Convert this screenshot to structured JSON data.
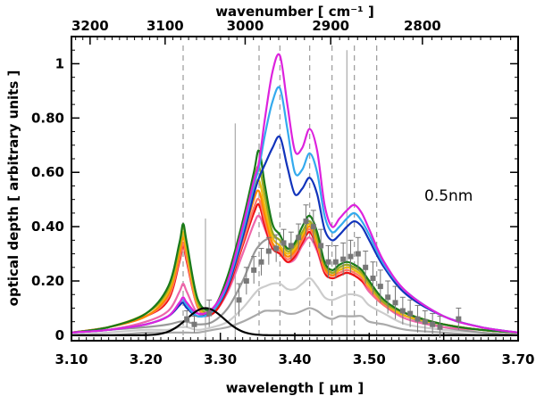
{
  "chart_data": {
    "type": "line",
    "title": "",
    "annotation": "0.5nm",
    "xlabel": "wavelength [ µm ]",
    "ylabel": "optical depth [ arbitrary units ]",
    "top_xlabel": "wavenumber [ cm⁻¹ ]",
    "xlim": [
      3.1,
      3.7
    ],
    "ylim": [
      -0.02,
      1.1
    ],
    "x_ticks": [
      3.1,
      3.2,
      3.3,
      3.4,
      3.5,
      3.6,
      3.7
    ],
    "x_tick_labels": [
      "3.10",
      "3.20",
      "3.30",
      "3.40",
      "3.50",
      "3.60",
      "3.70"
    ],
    "y_ticks": [
      0,
      0.2,
      0.4,
      0.6,
      0.8,
      1.0
    ],
    "y_tick_labels": [
      "0",
      "0.20",
      "0.40",
      "0.60",
      "0.80",
      "1"
    ],
    "top_ticks": [
      3200,
      3100,
      3000,
      2900,
      2800
    ],
    "top_tick_labels": [
      "3200",
      "3100",
      "3000",
      "2900",
      "2800"
    ],
    "dashed_lines_x": [
      3.25,
      3.352,
      3.38,
      3.42,
      3.45,
      3.48,
      3.51
    ],
    "solid_vlines": [
      {
        "x": 3.28,
        "top": 0.43
      },
      {
        "x": 3.32,
        "top": 0.78
      },
      {
        "x": 3.47,
        "top": 1.05
      }
    ],
    "profile_x": [
      3.1,
      3.15,
      3.2,
      3.23,
      3.245,
      3.25,
      3.255,
      3.27,
      3.29,
      3.31,
      3.33,
      3.345,
      3.352,
      3.36,
      3.37,
      3.38,
      3.39,
      3.4,
      3.41,
      3.42,
      3.43,
      3.44,
      3.45,
      3.46,
      3.47,
      3.48,
      3.49,
      3.5,
      3.52,
      3.55,
      3.6,
      3.65,
      3.7
    ],
    "series": [
      {
        "name": "magenta",
        "color": "#dd22dd",
        "values": [
          0.01,
          0.02,
          0.04,
          0.07,
          0.12,
          0.14,
          0.12,
          0.08,
          0.1,
          0.2,
          0.4,
          0.57,
          0.64,
          0.8,
          0.97,
          1.03,
          0.85,
          0.68,
          0.69,
          0.76,
          0.68,
          0.48,
          0.4,
          0.43,
          0.46,
          0.48,
          0.45,
          0.39,
          0.27,
          0.16,
          0.07,
          0.03,
          0.01
        ]
      },
      {
        "name": "sky-blue",
        "color": "#33aaee",
        "values": [
          0.01,
          0.02,
          0.04,
          0.07,
          0.12,
          0.13,
          0.11,
          0.07,
          0.09,
          0.19,
          0.38,
          0.55,
          0.62,
          0.74,
          0.86,
          0.91,
          0.76,
          0.6,
          0.61,
          0.67,
          0.6,
          0.44,
          0.38,
          0.4,
          0.43,
          0.45,
          0.42,
          0.37,
          0.26,
          0.16,
          0.07,
          0.03,
          0.01
        ]
      },
      {
        "name": "navy",
        "color": "#1133bb",
        "values": [
          0.01,
          0.02,
          0.04,
          0.07,
          0.11,
          0.12,
          0.1,
          0.07,
          0.09,
          0.18,
          0.36,
          0.52,
          0.58,
          0.63,
          0.69,
          0.73,
          0.62,
          0.52,
          0.54,
          0.58,
          0.52,
          0.39,
          0.35,
          0.37,
          0.4,
          0.42,
          0.4,
          0.35,
          0.25,
          0.15,
          0.07,
          0.03,
          0.01
        ]
      },
      {
        "name": "dark-green",
        "color": "#1a7a1a",
        "values": [
          0.01,
          0.03,
          0.08,
          0.18,
          0.34,
          0.41,
          0.34,
          0.13,
          0.1,
          0.22,
          0.42,
          0.6,
          0.68,
          0.55,
          0.41,
          0.37,
          0.32,
          0.34,
          0.4,
          0.44,
          0.38,
          0.27,
          0.24,
          0.26,
          0.27,
          0.26,
          0.24,
          0.2,
          0.13,
          0.08,
          0.04,
          0.02,
          0.01
        ]
      },
      {
        "name": "olive",
        "color": "#99aa22",
        "values": [
          0.01,
          0.03,
          0.08,
          0.17,
          0.33,
          0.4,
          0.33,
          0.12,
          0.09,
          0.21,
          0.4,
          0.57,
          0.62,
          0.51,
          0.38,
          0.35,
          0.31,
          0.33,
          0.38,
          0.42,
          0.36,
          0.26,
          0.23,
          0.25,
          0.26,
          0.25,
          0.23,
          0.19,
          0.12,
          0.08,
          0.04,
          0.02,
          0.01
        ]
      },
      {
        "name": "gold",
        "color": "#eebb11",
        "values": [
          0.01,
          0.03,
          0.08,
          0.16,
          0.32,
          0.38,
          0.31,
          0.11,
          0.09,
          0.2,
          0.38,
          0.53,
          0.57,
          0.47,
          0.36,
          0.33,
          0.3,
          0.32,
          0.37,
          0.41,
          0.35,
          0.26,
          0.23,
          0.24,
          0.25,
          0.24,
          0.22,
          0.18,
          0.12,
          0.07,
          0.04,
          0.02,
          0.01
        ]
      },
      {
        "name": "orange",
        "color": "#ff8800",
        "values": [
          0.01,
          0.03,
          0.07,
          0.15,
          0.3,
          0.36,
          0.3,
          0.11,
          0.09,
          0.19,
          0.36,
          0.5,
          0.53,
          0.44,
          0.34,
          0.32,
          0.29,
          0.31,
          0.36,
          0.4,
          0.34,
          0.25,
          0.22,
          0.24,
          0.25,
          0.24,
          0.22,
          0.18,
          0.12,
          0.07,
          0.04,
          0.02,
          0.01
        ]
      },
      {
        "name": "salmon",
        "color": "#ff7766",
        "values": [
          0.01,
          0.03,
          0.07,
          0.14,
          0.28,
          0.34,
          0.28,
          0.1,
          0.09,
          0.18,
          0.34,
          0.47,
          0.5,
          0.42,
          0.33,
          0.31,
          0.28,
          0.3,
          0.35,
          0.39,
          0.33,
          0.24,
          0.22,
          0.23,
          0.24,
          0.23,
          0.21,
          0.17,
          0.11,
          0.07,
          0.04,
          0.02,
          0.01
        ]
      },
      {
        "name": "red",
        "color": "#ee1111",
        "values": [
          0.01,
          0.03,
          0.07,
          0.13,
          0.27,
          0.33,
          0.27,
          0.1,
          0.08,
          0.17,
          0.33,
          0.45,
          0.48,
          0.4,
          0.32,
          0.3,
          0.27,
          0.29,
          0.34,
          0.38,
          0.32,
          0.23,
          0.21,
          0.22,
          0.23,
          0.22,
          0.2,
          0.17,
          0.11,
          0.07,
          0.04,
          0.02,
          0.01
        ]
      },
      {
        "name": "pink",
        "color": "#ee66aa",
        "values": [
          0.01,
          0.02,
          0.05,
          0.09,
          0.16,
          0.19,
          0.16,
          0.08,
          0.08,
          0.16,
          0.3,
          0.41,
          0.44,
          0.39,
          0.32,
          0.3,
          0.27,
          0.28,
          0.33,
          0.36,
          0.31,
          0.23,
          0.21,
          0.22,
          0.23,
          0.22,
          0.2,
          0.16,
          0.11,
          0.06,
          0.03,
          0.02,
          0.01
        ]
      },
      {
        "name": "gray-1",
        "color": "#999999",
        "values": [
          0.01,
          0.02,
          0.03,
          0.04,
          0.05,
          0.05,
          0.05,
          0.04,
          0.05,
          0.1,
          0.2,
          0.3,
          0.33,
          0.35,
          0.36,
          0.35,
          0.31,
          0.31,
          0.35,
          0.38,
          0.33,
          0.25,
          0.23,
          0.24,
          0.25,
          0.25,
          0.23,
          0.19,
          0.13,
          0.07,
          0.03,
          0.01,
          0.0
        ]
      },
      {
        "name": "gray-2",
        "color": "#cccccc",
        "values": [
          0.0,
          0.01,
          0.02,
          0.02,
          0.03,
          0.03,
          0.03,
          0.02,
          0.03,
          0.05,
          0.1,
          0.15,
          0.17,
          0.18,
          0.19,
          0.19,
          0.17,
          0.17,
          0.19,
          0.21,
          0.18,
          0.14,
          0.13,
          0.14,
          0.15,
          0.15,
          0.14,
          0.11,
          0.08,
          0.04,
          0.02,
          0.01,
          0.0
        ]
      },
      {
        "name": "gray-3",
        "color": "#aaaaaa",
        "values": [
          0.0,
          0.0,
          0.01,
          0.01,
          0.01,
          0.01,
          0.01,
          0.01,
          0.02,
          0.03,
          0.05,
          0.07,
          0.08,
          0.09,
          0.09,
          0.09,
          0.08,
          0.08,
          0.09,
          0.1,
          0.09,
          0.07,
          0.06,
          0.07,
          0.07,
          0.07,
          0.07,
          0.05,
          0.04,
          0.02,
          0.01,
          0.0,
          0.0
        ]
      }
    ],
    "gaussian": {
      "name": "black-gaussian",
      "color": "#000000",
      "center": 3.28,
      "amplitude": 0.1,
      "sigma": 0.025
    },
    "observed_points": [
      {
        "x": 3.255,
        "y": 0.06,
        "err": 0.03
      },
      {
        "x": 3.265,
        "y": 0.04,
        "err": 0.03
      },
      {
        "x": 3.285,
        "y": 0.08,
        "err": 0.05
      },
      {
        "x": 3.325,
        "y": 0.13,
        "err": 0.06
      },
      {
        "x": 3.335,
        "y": 0.2,
        "err": 0.05
      },
      {
        "x": 3.345,
        "y": 0.24,
        "err": 0.05
      },
      {
        "x": 3.355,
        "y": 0.27,
        "err": 0.05
      },
      {
        "x": 3.365,
        "y": 0.31,
        "err": 0.05
      },
      {
        "x": 3.375,
        "y": 0.32,
        "err": 0.05
      },
      {
        "x": 3.385,
        "y": 0.34,
        "err": 0.05
      },
      {
        "x": 3.395,
        "y": 0.33,
        "err": 0.05
      },
      {
        "x": 3.405,
        "y": 0.36,
        "err": 0.05
      },
      {
        "x": 3.415,
        "y": 0.42,
        "err": 0.06
      },
      {
        "x": 3.425,
        "y": 0.4,
        "err": 0.06
      },
      {
        "x": 3.435,
        "y": 0.33,
        "err": 0.06
      },
      {
        "x": 3.445,
        "y": 0.27,
        "err": 0.06
      },
      {
        "x": 3.455,
        "y": 0.27,
        "err": 0.06
      },
      {
        "x": 3.465,
        "y": 0.28,
        "err": 0.06
      },
      {
        "x": 3.475,
        "y": 0.29,
        "err": 0.06
      },
      {
        "x": 3.485,
        "y": 0.3,
        "err": 0.06
      },
      {
        "x": 3.495,
        "y": 0.25,
        "err": 0.06
      },
      {
        "x": 3.505,
        "y": 0.21,
        "err": 0.06
      },
      {
        "x": 3.515,
        "y": 0.18,
        "err": 0.06
      },
      {
        "x": 3.525,
        "y": 0.14,
        "err": 0.06
      },
      {
        "x": 3.535,
        "y": 0.12,
        "err": 0.06
      },
      {
        "x": 3.545,
        "y": 0.09,
        "err": 0.05
      },
      {
        "x": 3.555,
        "y": 0.08,
        "err": 0.05
      },
      {
        "x": 3.565,
        "y": 0.06,
        "err": 0.05
      },
      {
        "x": 3.575,
        "y": 0.05,
        "err": 0.04
      },
      {
        "x": 3.585,
        "y": 0.04,
        "err": 0.04
      },
      {
        "x": 3.595,
        "y": 0.03,
        "err": 0.04
      },
      {
        "x": 3.62,
        "y": 0.06,
        "err": 0.04
      }
    ]
  }
}
